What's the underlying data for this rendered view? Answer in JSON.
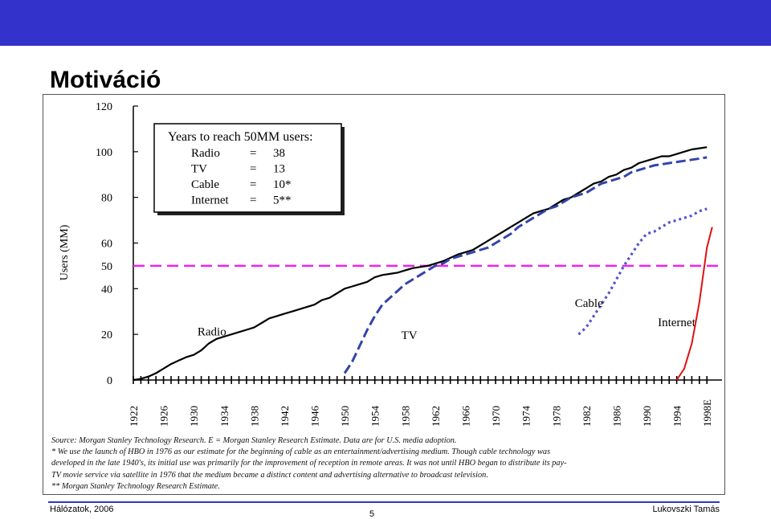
{
  "slide": {
    "title": "Motiváció",
    "footer_left": "Hálózatok, 2006",
    "page_number": "5",
    "footer_right": "Lukovszki Tamás",
    "bar_color": "#3333cc"
  },
  "chart_data": {
    "type": "line",
    "title": "",
    "xlabel": "",
    "ylabel": "Users (MM)",
    "xlim": [
      1922,
      2000
    ],
    "ylim": [
      0,
      120
    ],
    "yticks": [
      0,
      20,
      40,
      50,
      60,
      80,
      100,
      120
    ],
    "xticks": [
      "1922",
      "1926",
      "1930",
      "1934",
      "1938",
      "1942",
      "1946",
      "1950",
      "1954",
      "1958",
      "1962",
      "1966",
      "1970",
      "1974",
      "1978",
      "1982",
      "1986",
      "1990",
      "1994",
      "1998E"
    ],
    "threshold": {
      "value": 50,
      "color": "#ee22ee"
    },
    "series": [
      {
        "name": "Radio",
        "color": "#000000",
        "style": "solid",
        "points": [
          [
            1922,
            0
          ],
          [
            1923,
            0.5
          ],
          [
            1924,
            1.5
          ],
          [
            1925,
            3
          ],
          [
            1926,
            5
          ],
          [
            1927,
            7
          ],
          [
            1928,
            8.5
          ],
          [
            1929,
            10
          ],
          [
            1930,
            11
          ],
          [
            1931,
            13
          ],
          [
            1932,
            16
          ],
          [
            1933,
            18
          ],
          [
            1934,
            19
          ],
          [
            1935,
            20
          ],
          [
            1936,
            21
          ],
          [
            1937,
            22
          ],
          [
            1938,
            23
          ],
          [
            1939,
            25
          ],
          [
            1940,
            27
          ],
          [
            1941,
            28
          ],
          [
            1942,
            29
          ],
          [
            1943,
            30
          ],
          [
            1944,
            31
          ],
          [
            1945,
            32
          ],
          [
            1946,
            33
          ],
          [
            1947,
            35
          ],
          [
            1948,
            36
          ],
          [
            1949,
            38
          ],
          [
            1950,
            40
          ],
          [
            1951,
            41
          ],
          [
            1952,
            42
          ],
          [
            1953,
            43
          ],
          [
            1954,
            45
          ],
          [
            1955,
            46
          ],
          [
            1956,
            46.5
          ],
          [
            1957,
            47
          ],
          [
            1958,
            48
          ],
          [
            1959,
            49
          ],
          [
            1960,
            49.5
          ],
          [
            1961,
            50
          ],
          [
            1962,
            51
          ],
          [
            1963,
            52
          ],
          [
            1964,
            53.5
          ],
          [
            1965,
            55
          ],
          [
            1966,
            56
          ],
          [
            1967,
            57
          ],
          [
            1968,
            59
          ],
          [
            1969,
            61
          ],
          [
            1970,
            63
          ],
          [
            1971,
            65
          ],
          [
            1972,
            67
          ],
          [
            1973,
            69
          ],
          [
            1974,
            71
          ],
          [
            1975,
            73
          ],
          [
            1976,
            74
          ],
          [
            1977,
            75
          ],
          [
            1978,
            77
          ],
          [
            1979,
            79
          ],
          [
            1980,
            80
          ],
          [
            1981,
            82
          ],
          [
            1982,
            84
          ],
          [
            1983,
            86
          ],
          [
            1984,
            87
          ],
          [
            1985,
            89
          ],
          [
            1986,
            90
          ],
          [
            1987,
            92
          ],
          [
            1988,
            93
          ],
          [
            1989,
            95
          ],
          [
            1990,
            96
          ],
          [
            1991,
            97
          ],
          [
            1992,
            98
          ],
          [
            1993,
            98
          ],
          [
            1994,
            99
          ],
          [
            1995,
            100
          ],
          [
            1996,
            101
          ],
          [
            1997,
            101.5
          ],
          [
            1998,
            102
          ]
        ]
      },
      {
        "name": "TV",
        "color": "#3344aa",
        "style": "dash",
        "points": [
          [
            1950,
            3
          ],
          [
            1951,
            8
          ],
          [
            1952,
            15
          ],
          [
            1953,
            22
          ],
          [
            1954,
            28
          ],
          [
            1955,
            33
          ],
          [
            1956,
            36
          ],
          [
            1957,
            39
          ],
          [
            1958,
            42
          ],
          [
            1959,
            44
          ],
          [
            1960,
            46
          ],
          [
            1961,
            48
          ],
          [
            1962,
            50
          ],
          [
            1963,
            51
          ],
          [
            1964,
            53
          ],
          [
            1965,
            54
          ],
          [
            1966,
            55
          ],
          [
            1967,
            56
          ],
          [
            1968,
            57
          ],
          [
            1969,
            58
          ],
          [
            1970,
            60
          ],
          [
            1971,
            62
          ],
          [
            1972,
            64
          ],
          [
            1973,
            67
          ],
          [
            1974,
            69
          ],
          [
            1975,
            71
          ],
          [
            1976,
            73
          ],
          [
            1977,
            75
          ],
          [
            1978,
            76
          ],
          [
            1979,
            78
          ],
          [
            1980,
            80
          ],
          [
            1981,
            81
          ],
          [
            1982,
            82
          ],
          [
            1983,
            84
          ],
          [
            1984,
            86
          ],
          [
            1985,
            87
          ],
          [
            1986,
            88
          ],
          [
            1987,
            89
          ],
          [
            1988,
            91
          ],
          [
            1989,
            92
          ],
          [
            1990,
            93
          ],
          [
            1991,
            94
          ],
          [
            1992,
            94.5
          ],
          [
            1993,
            95
          ],
          [
            1994,
            95.5
          ],
          [
            1995,
            96
          ],
          [
            1996,
            96.5
          ],
          [
            1997,
            97
          ],
          [
            1998,
            97.5
          ]
        ]
      },
      {
        "name": "Cable",
        "color": "#5555cc",
        "style": "dot",
        "points": [
          [
            1981,
            20
          ],
          [
            1982,
            23
          ],
          [
            1983,
            28
          ],
          [
            1984,
            33
          ],
          [
            1985,
            38
          ],
          [
            1986,
            44
          ],
          [
            1987,
            50
          ],
          [
            1988,
            55
          ],
          [
            1989,
            60
          ],
          [
            1990,
            64
          ],
          [
            1991,
            65
          ],
          [
            1992,
            67
          ],
          [
            1993,
            69
          ],
          [
            1994,
            70
          ],
          [
            1995,
            71
          ],
          [
            1996,
            72
          ],
          [
            1997,
            74
          ],
          [
            1998,
            75
          ]
        ]
      },
      {
        "name": "Internet",
        "color": "#dd1111",
        "style": "solid",
        "points": [
          [
            1994,
            0
          ],
          [
            1995,
            5
          ],
          [
            1996,
            16
          ],
          [
            1997,
            34
          ],
          [
            1998,
            58
          ],
          [
            1998.7,
            67
          ]
        ]
      }
    ],
    "inset": {
      "title": "Years to reach 50MM users:",
      "rows": [
        {
          "label": "Radio",
          "eq": "=",
          "value": "38"
        },
        {
          "label": "TV",
          "eq": "=",
          "value": "13"
        },
        {
          "label": "Cable",
          "eq": "=",
          "value": "10*"
        },
        {
          "label": "Internet",
          "eq": "=",
          "value": "5**"
        }
      ]
    },
    "source_lines": [
      "Source: Morgan Stanley Technology Research. E = Morgan Stanley Research Estimate.   Data are for U.S. media adoption.",
      "* We use the launch of HBO in 1976 as our estimate for the beginning of cable as an entertainment/advertising medium.  Though cable technology was",
      "developed in the late 1940's, its initial use was primarily for the improvement of reception in remote areas.  It was not until HBO began to distribute its pay-",
      "TV movie service via satellite in 1976 that the medium became a distinct content and advertising alternative to broadcast television.",
      "** Morgan Stanley Technology Research Estimate."
    ]
  }
}
